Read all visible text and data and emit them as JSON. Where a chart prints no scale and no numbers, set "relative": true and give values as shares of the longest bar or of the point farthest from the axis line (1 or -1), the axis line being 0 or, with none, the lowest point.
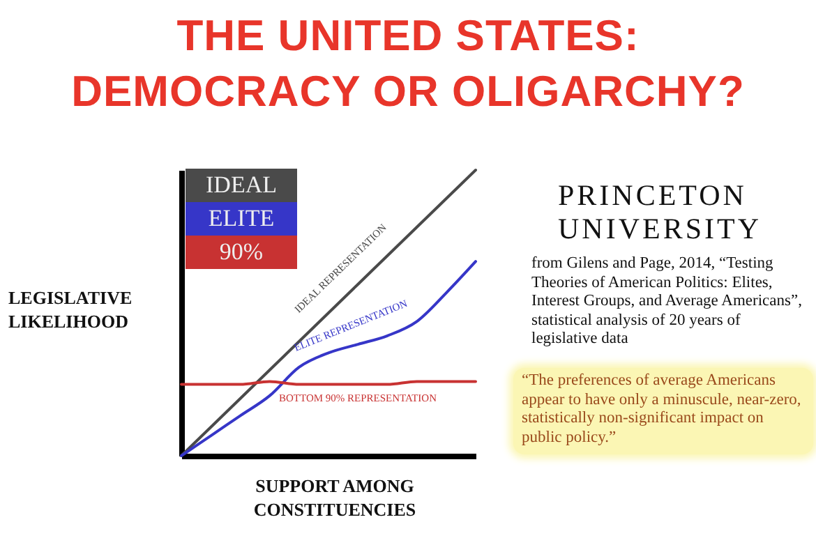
{
  "chart_data": {
    "type": "line",
    "title": "THE UNITED STATES:\nDEMOCRACY OR OLIGARCHY?",
    "xlabel": "SUPPORT AMONG CONSTITUENCIES",
    "ylabel": "LEGISLATIVE LIKELIHOOD",
    "relative": true,
    "legend": "top left",
    "categories": [
      null,
      null,
      null,
      null,
      null,
      null,
      null,
      null,
      null,
      null,
      null
    ],
    "series": [
      {
        "name": "IDEAL",
        "color": "#4a4a4a",
        "values": [
          0,
          0.1,
          0.2,
          0.3,
          0.4,
          0.5,
          0.6,
          0.7,
          0.8,
          0.9,
          1
        ]
      },
      {
        "name": "ELITE",
        "color": "#3636c8",
        "values": [
          0,
          0.07,
          0.14,
          0.21,
          0.31,
          0.36,
          0.39,
          0.42,
          0.47,
          0.57,
          0.68
        ]
      },
      {
        "name": "90%",
        "color": "#c83232",
        "values": [
          0.25,
          0.25,
          0.25,
          0.26,
          0.25,
          0.25,
          0.25,
          0.25,
          0.26,
          0.26,
          0.26
        ]
      }
    ],
    "annotations": [
      "IDEAL REPRESENTATION",
      "ELITE REPRESENTATION",
      "BOTTOM 90% REPRESENTATION",
      "PRINCETON UNIVERSITY",
      "from Gilens and Page, 2014, “Testing Theories of American Politics: Elites, Interest Groups, and Average Americans”, statistical analysis of 20 years of legislative data",
      "“The preferences of average Americans appear to have only a minuscule, near-zero, statistically non-significant impact on public policy.”"
    ]
  }
}
